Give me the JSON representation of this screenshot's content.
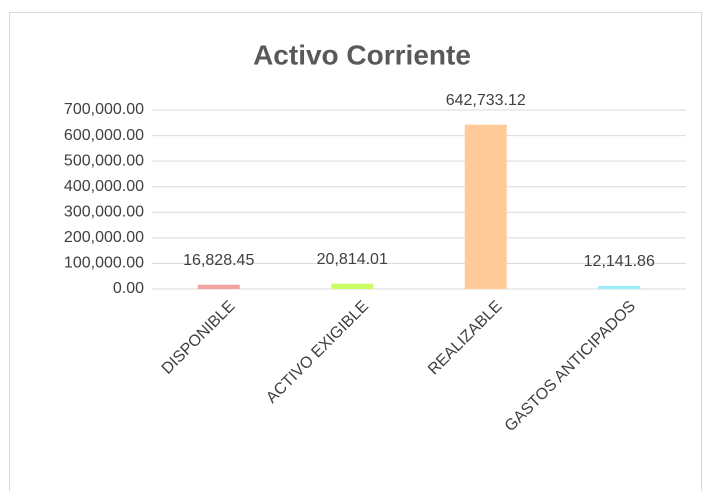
{
  "chart_data": {
    "type": "bar",
    "title": "Activo Corriente",
    "categories": [
      "DISPONIBLE",
      "ACTIVO EXIGIBLE",
      "REALIZABLE",
      "GASTOS ANTICIPADOS"
    ],
    "values": [
      16828.45,
      20814.01,
      642733.12,
      12141.86
    ],
    "value_labels": [
      "16,828.45",
      "20,814.01",
      "642,733.12",
      "12,141.86"
    ],
    "colors": [
      "#f4a3a3",
      "#ccff66",
      "#ffcc99",
      "#99eef8"
    ],
    "ylim": [
      0,
      700000
    ],
    "yticks": [
      {
        "value": 0,
        "label": "0.00"
      },
      {
        "value": 100000,
        "label": "100,000.00"
      },
      {
        "value": 200000,
        "label": "200,000.00"
      },
      {
        "value": 300000,
        "label": "300,000.00"
      },
      {
        "value": 400000,
        "label": "400,000.00"
      },
      {
        "value": 500000,
        "label": "500,000.00"
      },
      {
        "value": 600000,
        "label": "600,000.00"
      },
      {
        "value": 700000,
        "label": "700,000.00"
      }
    ],
    "grid": true
  }
}
